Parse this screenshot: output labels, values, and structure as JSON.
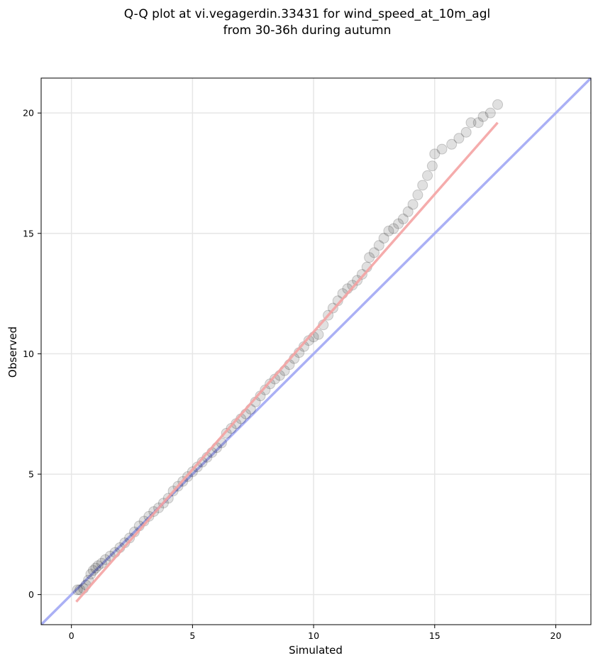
{
  "chart_data": {
    "type": "scatter",
    "title": "Q-Q plot at vi.vegagerdin.33431 for wind_speed_at_10m_agl",
    "subtitle": "from 30-36h during autumn",
    "xlabel": "Simulated",
    "ylabel": "Observed",
    "xlim": [
      -1.25,
      21.45
    ],
    "ylim": [
      -1.25,
      21.45
    ],
    "x_ticks": [
      0,
      5,
      10,
      15,
      20
    ],
    "y_ticks": [
      0,
      5,
      10,
      15,
      20
    ],
    "x_tick_labels": [
      "0",
      "5",
      "10",
      "15",
      "20"
    ],
    "y_tick_labels": [
      "0",
      "5",
      "10",
      "15",
      "20"
    ],
    "grid": true,
    "reference_line": {
      "points": [
        [
          -1.25,
          -1.25
        ],
        [
          21.45,
          21.45
        ]
      ],
      "color": "#aab0f5"
    },
    "fit_line": {
      "points": [
        [
          0.2,
          -0.3
        ],
        [
          17.6,
          19.6
        ]
      ],
      "color": "#f4a3a3"
    },
    "point_color": "#000000",
    "quantiles": [
      [
        0.25,
        0.2
      ],
      [
        0.35,
        0.2
      ],
      [
        0.5,
        0.25
      ],
      [
        0.6,
        0.4
      ],
      [
        0.7,
        0.6
      ],
      [
        0.8,
        0.85
      ],
      [
        0.9,
        1.0
      ],
      [
        1.0,
        1.1
      ],
      [
        1.1,
        1.2
      ],
      [
        1.25,
        1.3
      ],
      [
        1.4,
        1.45
      ],
      [
        1.6,
        1.6
      ],
      [
        1.8,
        1.75
      ],
      [
        2.0,
        1.95
      ],
      [
        2.2,
        2.15
      ],
      [
        2.4,
        2.35
      ],
      [
        2.6,
        2.6
      ],
      [
        2.8,
        2.85
      ],
      [
        3.0,
        3.05
      ],
      [
        3.2,
        3.25
      ],
      [
        3.4,
        3.45
      ],
      [
        3.6,
        3.6
      ],
      [
        3.8,
        3.8
      ],
      [
        4.0,
        4.0
      ],
      [
        4.2,
        4.3
      ],
      [
        4.4,
        4.5
      ],
      [
        4.6,
        4.7
      ],
      [
        4.8,
        4.9
      ],
      [
        5.0,
        5.1
      ],
      [
        5.2,
        5.3
      ],
      [
        5.4,
        5.5
      ],
      [
        5.6,
        5.7
      ],
      [
        5.8,
        5.9
      ],
      [
        6.0,
        6.1
      ],
      [
        6.2,
        6.3
      ],
      [
        6.4,
        6.7
      ],
      [
        6.6,
        6.9
      ],
      [
        6.8,
        7.1
      ],
      [
        7.0,
        7.3
      ],
      [
        7.2,
        7.5
      ],
      [
        7.4,
        7.7
      ],
      [
        7.6,
        8.0
      ],
      [
        7.8,
        8.25
      ],
      [
        8.0,
        8.5
      ],
      [
        8.2,
        8.75
      ],
      [
        8.4,
        8.95
      ],
      [
        8.6,
        9.1
      ],
      [
        8.8,
        9.3
      ],
      [
        9.0,
        9.55
      ],
      [
        9.2,
        9.8
      ],
      [
        9.4,
        10.05
      ],
      [
        9.6,
        10.3
      ],
      [
        9.8,
        10.55
      ],
      [
        10.0,
        10.7
      ],
      [
        10.2,
        10.8
      ],
      [
        10.4,
        11.2
      ],
      [
        10.6,
        11.6
      ],
      [
        10.8,
        11.9
      ],
      [
        11.0,
        12.2
      ],
      [
        11.2,
        12.5
      ],
      [
        11.4,
        12.7
      ],
      [
        11.6,
        12.85
      ],
      [
        11.8,
        13.05
      ],
      [
        12.0,
        13.3
      ],
      [
        12.2,
        13.6
      ],
      [
        12.3,
        14.0
      ],
      [
        12.5,
        14.2
      ],
      [
        12.7,
        14.5
      ],
      [
        12.9,
        14.8
      ],
      [
        13.1,
        15.1
      ],
      [
        13.3,
        15.2
      ],
      [
        13.5,
        15.4
      ],
      [
        13.7,
        15.6
      ],
      [
        13.9,
        15.9
      ],
      [
        14.1,
        16.2
      ],
      [
        14.3,
        16.6
      ],
      [
        14.5,
        17.0
      ],
      [
        14.7,
        17.4
      ],
      [
        14.9,
        17.8
      ],
      [
        15.0,
        18.3
      ],
      [
        15.3,
        18.5
      ],
      [
        15.7,
        18.7
      ],
      [
        16.0,
        18.95
      ],
      [
        16.3,
        19.2
      ],
      [
        16.5,
        19.6
      ],
      [
        16.8,
        19.6
      ],
      [
        17.0,
        19.85
      ],
      [
        17.3,
        20.0
      ],
      [
        17.6,
        20.35
      ]
    ]
  }
}
